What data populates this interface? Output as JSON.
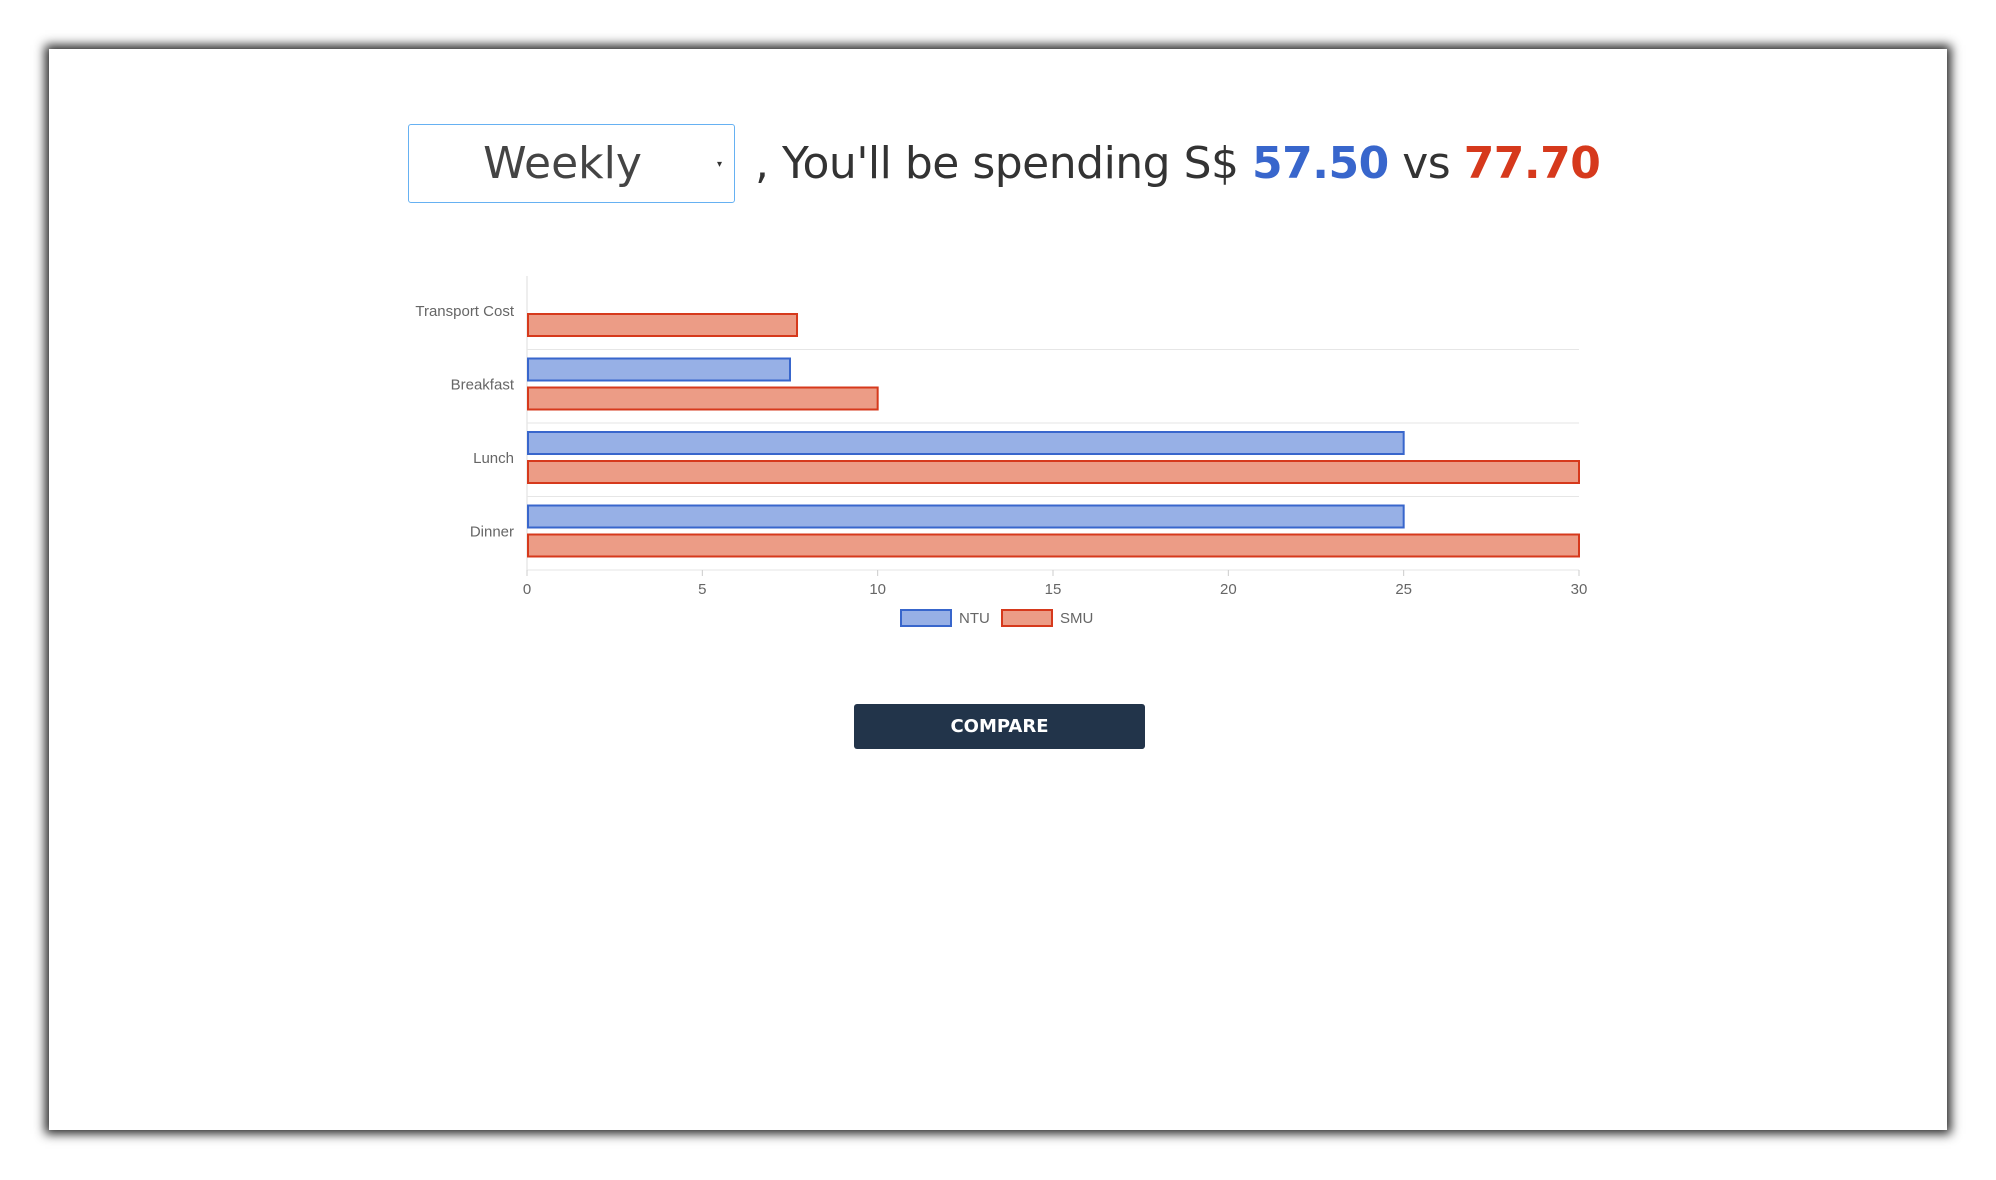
{
  "period_select": {
    "value": "Weekly",
    "caret_icon": "caret-down-icon"
  },
  "headline": {
    "prefix": ", You'll be spending S$",
    "amount_a": "57.50",
    "separator": "vs",
    "amount_b": "77.70"
  },
  "colors": {
    "ntu_fill": "#97b0e6",
    "ntu_stroke": "#3866cc",
    "smu_fill": "#ec9c86",
    "smu_stroke": "#d6391c",
    "button_bg": "#22344a"
  },
  "chart_data": {
    "type": "bar",
    "orientation": "horizontal",
    "categories": [
      "Transport Cost",
      "Breakfast",
      "Lunch",
      "Dinner"
    ],
    "series": [
      {
        "name": "NTU",
        "values": [
          0,
          7.5,
          25,
          25
        ]
      },
      {
        "name": "SMU",
        "values": [
          7.7,
          10,
          30,
          30
        ]
      }
    ],
    "xlim": [
      0,
      30
    ],
    "xticks": [
      0,
      5,
      10,
      15,
      20,
      25,
      30
    ],
    "legend_position": "bottom",
    "grid": true
  },
  "compare_button": {
    "label": "COMPARE"
  }
}
